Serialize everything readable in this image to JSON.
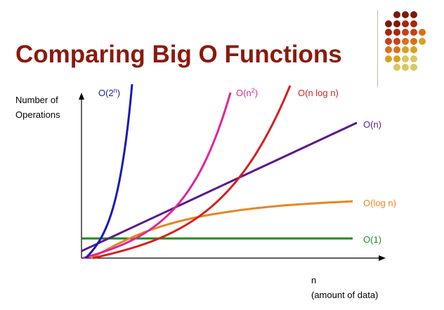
{
  "slide": {
    "title": "Comparing Big O Functions"
  },
  "axes": {
    "y_label_line1": "Number of",
    "y_label_line2": "Operations",
    "x_label_line1": "n",
    "x_label_line2": "(amount of data)"
  },
  "curves": {
    "o_2n": {
      "base": "O(2",
      "sup": "n",
      "tail": ")",
      "color": "#1a1ab4"
    },
    "o_n2": {
      "base": "O(n",
      "sup": "2",
      "tail": ")",
      "color": "#e0249a"
    },
    "o_nlogn": {
      "text": "O(n log n)",
      "color": "#d81e1e"
    },
    "o_n": {
      "text": "O(n)",
      "color": "#5a1a8c"
    },
    "o_logn": {
      "text": "O(log n)",
      "color": "#e8861e"
    },
    "o_1": {
      "text": "O(1)",
      "color": "#1e8c1e"
    }
  },
  "decoration": {
    "dot_colors": [
      "#7b1a0a",
      "#a8260c",
      "#c8401a",
      "#d8701a",
      "#d8a020",
      "#d8c860"
    ]
  }
}
